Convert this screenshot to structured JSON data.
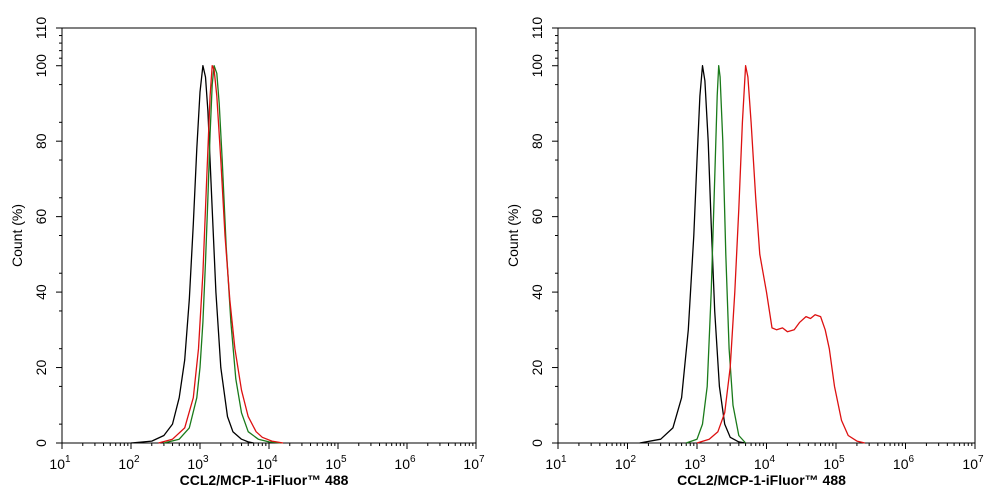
{
  "chart_data": [
    {
      "type": "line",
      "title": "",
      "xlabel": "CCL2/MCP-1-iFluor™ 488",
      "ylabel": "Count  (%)",
      "xscale": "log",
      "xlim": [
        10,
        10000000
      ],
      "ylim": [
        0,
        110
      ],
      "xticks": [
        10,
        100,
        1000,
        10000,
        100000,
        1000000,
        10000000
      ],
      "xtick_labels": [
        {
          "base": "10",
          "exp": "1"
        },
        {
          "base": "10",
          "exp": "2"
        },
        {
          "base": "10",
          "exp": "3"
        },
        {
          "base": "10",
          "exp": "4"
        },
        {
          "base": "10",
          "exp": "5"
        },
        {
          "base": "10",
          "exp": "6"
        },
        {
          "base": "10",
          "exp": "7"
        }
      ],
      "yticks": [
        0,
        20,
        40,
        60,
        80,
        100,
        110
      ],
      "ytick_labels": [
        "0",
        "20",
        "40",
        "60",
        "80",
        "100",
        "110"
      ],
      "grid": false,
      "series": [
        {
          "name": "black",
          "color": "#000000",
          "points": [
            [
              100,
              0
            ],
            [
              200,
              0.5
            ],
            [
              300,
              2
            ],
            [
              400,
              5
            ],
            [
              500,
              12
            ],
            [
              600,
              22
            ],
            [
              700,
              38
            ],
            [
              800,
              58
            ],
            [
              900,
              78
            ],
            [
              1000,
              93
            ],
            [
              1100,
              100
            ],
            [
              1200,
              97
            ],
            [
              1300,
              88
            ],
            [
              1500,
              62
            ],
            [
              1700,
              40
            ],
            [
              2000,
              20
            ],
            [
              2500,
              7
            ],
            [
              3000,
              3
            ],
            [
              4000,
              1
            ],
            [
              5000,
              0.3
            ],
            [
              6000,
              0
            ]
          ]
        },
        {
          "name": "green",
          "color": "#1a7a1a",
          "points": [
            [
              300,
              0
            ],
            [
              500,
              1
            ],
            [
              700,
              4
            ],
            [
              900,
              12
            ],
            [
              1000,
              20
            ],
            [
              1100,
              32
            ],
            [
              1200,
              48
            ],
            [
              1300,
              65
            ],
            [
              1400,
              82
            ],
            [
              1500,
              95
            ],
            [
              1600,
              100
            ],
            [
              1750,
              98
            ],
            [
              1900,
              90
            ],
            [
              2100,
              75
            ],
            [
              2400,
              52
            ],
            [
              2800,
              32
            ],
            [
              3300,
              17
            ],
            [
              4000,
              8
            ],
            [
              5000,
              3
            ],
            [
              7000,
              1
            ],
            [
              10000,
              0.3
            ],
            [
              15000,
              0
            ]
          ]
        },
        {
          "name": "red",
          "color": "#dd1111",
          "points": [
            [
              250,
              0
            ],
            [
              400,
              1
            ],
            [
              600,
              4
            ],
            [
              800,
              12
            ],
            [
              950,
              25
            ],
            [
              1100,
              45
            ],
            [
              1250,
              70
            ],
            [
              1400,
              92
            ],
            [
              1500,
              100
            ],
            [
              1600,
              99
            ],
            [
              1750,
              92
            ],
            [
              2000,
              75
            ],
            [
              2300,
              55
            ],
            [
              2700,
              38
            ],
            [
              3200,
              25
            ],
            [
              4000,
              14
            ],
            [
              5000,
              7
            ],
            [
              6500,
              3
            ],
            [
              8000,
              1.5
            ],
            [
              11000,
              0.5
            ],
            [
              16000,
              0
            ]
          ]
        }
      ]
    },
    {
      "type": "line",
      "title": "",
      "xlabel": "CCL2/MCP-1-iFluor™ 488",
      "ylabel": "Count  (%)",
      "xscale": "log",
      "xlim": [
        10,
        10000000
      ],
      "ylim": [
        0,
        110
      ],
      "xticks": [
        10,
        100,
        1000,
        10000,
        100000,
        1000000,
        10000000
      ],
      "xtick_labels": [
        {
          "base": "10",
          "exp": "1"
        },
        {
          "base": "10",
          "exp": "2"
        },
        {
          "base": "10",
          "exp": "3"
        },
        {
          "base": "10",
          "exp": "4"
        },
        {
          "base": "10",
          "exp": "5"
        },
        {
          "base": "10",
          "exp": "6"
        },
        {
          "base": "10",
          "exp": "7"
        }
      ],
      "yticks": [
        0,
        20,
        40,
        60,
        80,
        100,
        110
      ],
      "ytick_labels": [
        "0",
        "20",
        "40",
        "60",
        "80",
        "100",
        "110"
      ],
      "grid": false,
      "series": [
        {
          "name": "black",
          "color": "#000000",
          "points": [
            [
              150,
              0
            ],
            [
              300,
              1
            ],
            [
              450,
              4
            ],
            [
              600,
              12
            ],
            [
              750,
              30
            ],
            [
              900,
              55
            ],
            [
              1000,
              75
            ],
            [
              1100,
              92
            ],
            [
              1200,
              100
            ],
            [
              1300,
              96
            ],
            [
              1450,
              80
            ],
            [
              1600,
              58
            ],
            [
              1800,
              35
            ],
            [
              2100,
              15
            ],
            [
              2500,
              5
            ],
            [
              3000,
              1.5
            ],
            [
              4000,
              0.3
            ],
            [
              5000,
              0
            ]
          ]
        },
        {
          "name": "green",
          "color": "#1a7a1a",
          "points": [
            [
              700,
              0
            ],
            [
              1000,
              1
            ],
            [
              1200,
              5
            ],
            [
              1400,
              15
            ],
            [
              1600,
              40
            ],
            [
              1800,
              70
            ],
            [
              1950,
              92
            ],
            [
              2050,
              100
            ],
            [
              2150,
              97
            ],
            [
              2350,
              80
            ],
            [
              2600,
              50
            ],
            [
              2900,
              25
            ],
            [
              3300,
              10
            ],
            [
              4000,
              2
            ],
            [
              5000,
              0
            ]
          ]
        },
        {
          "name": "red",
          "color": "#dd1111",
          "points": [
            [
              1000,
              0
            ],
            [
              1500,
              1
            ],
            [
              2000,
              3
            ],
            [
              2500,
              8
            ],
            [
              3000,
              20
            ],
            [
              3500,
              40
            ],
            [
              4000,
              62
            ],
            [
              4500,
              85
            ],
            [
              5000,
              100
            ],
            [
              5400,
              97
            ],
            [
              6000,
              85
            ],
            [
              7000,
              65
            ],
            [
              8000,
              50
            ],
            [
              10000,
              40
            ],
            [
              12000,
              30.5
            ],
            [
              14000,
              30
            ],
            [
              17000,
              30.5
            ],
            [
              20000,
              29.5
            ],
            [
              25000,
              30
            ],
            [
              30000,
              32
            ],
            [
              37000,
              33.5
            ],
            [
              43000,
              33
            ],
            [
              50000,
              34
            ],
            [
              60000,
              33.5
            ],
            [
              70000,
              30
            ],
            [
              80000,
              25
            ],
            [
              95000,
              15
            ],
            [
              120000,
              6
            ],
            [
              150000,
              2
            ],
            [
              200000,
              0.5
            ],
            [
              260000,
              0
            ]
          ]
        }
      ]
    }
  ]
}
